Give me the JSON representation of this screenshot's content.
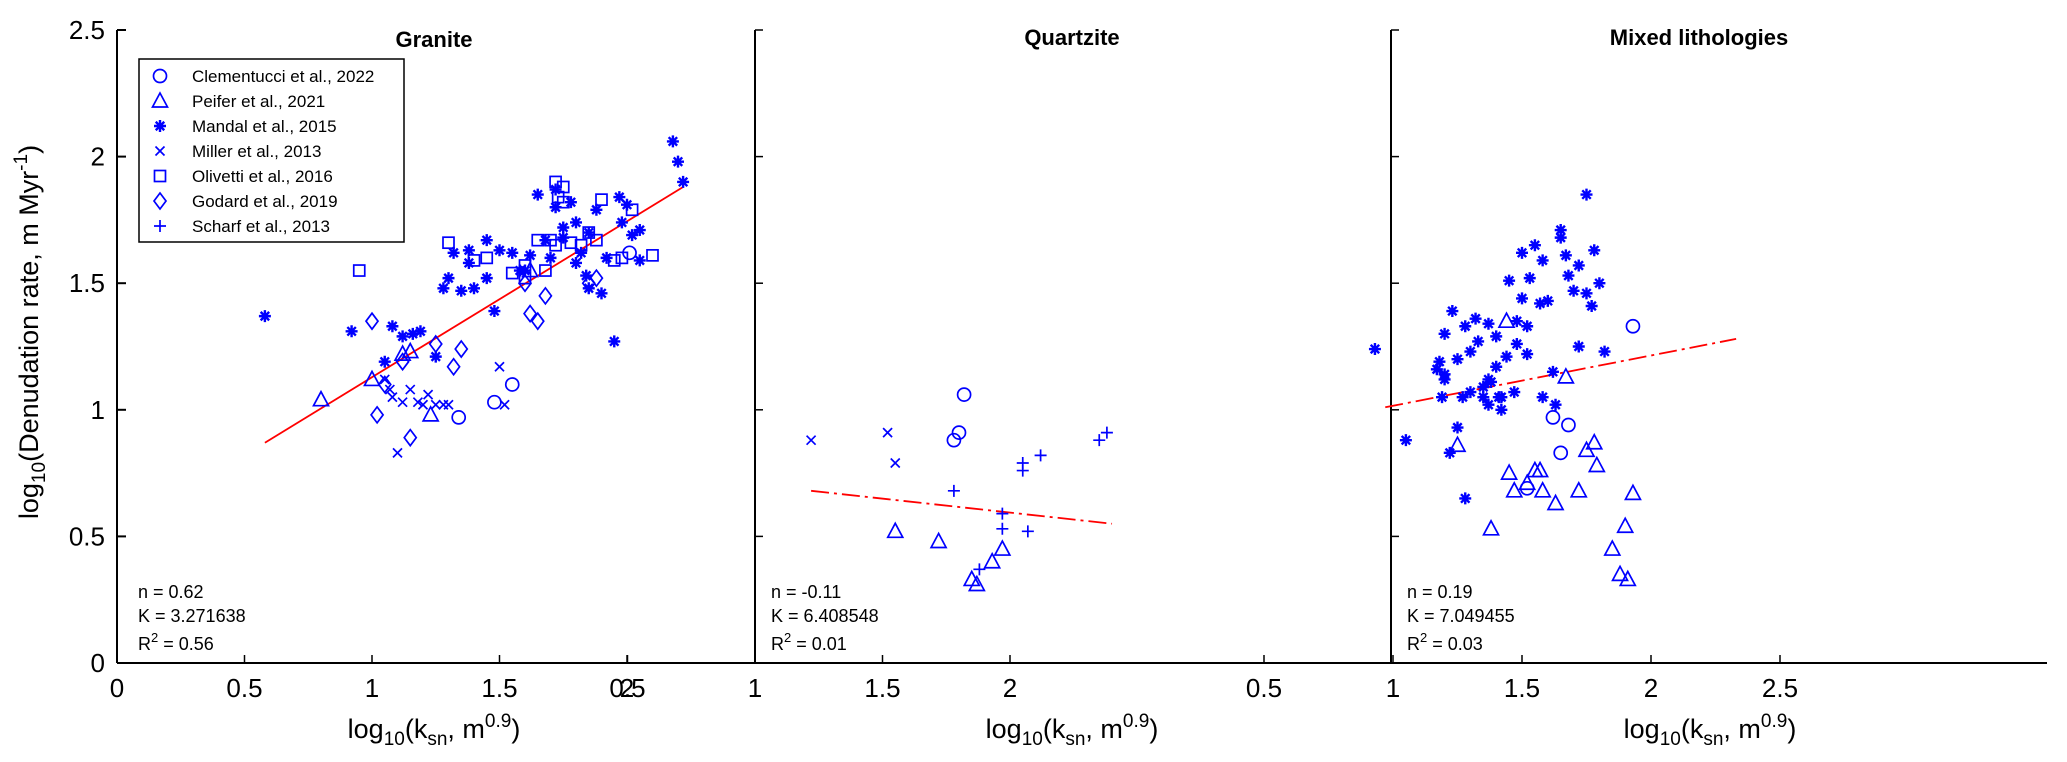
{
  "chart_data": {
    "type": "scatter",
    "ylabel": "log10(Denudation rate, m Myr-1)",
    "xlabel": "log10(ksn, m0.9)",
    "ylim": [
      0,
      2.5
    ],
    "y_ticks": [
      "0",
      "0.5",
      "1",
      "1.5",
      "2",
      "2.5"
    ],
    "legend_position": "top-left (Granite panel)",
    "legend": [
      {
        "name": "Clementucci et al., 2022",
        "marker": "circle"
      },
      {
        "name": "Peifer et al., 2021",
        "marker": "triangle"
      },
      {
        "name": "Mandal et al., 2015",
        "marker": "star"
      },
      {
        "name": "Miller et al., 2013",
        "marker": "x"
      },
      {
        "name": "Olivetti et al., 2016",
        "marker": "square"
      },
      {
        "name": "Godard et al., 2019",
        "marker": "diamond"
      },
      {
        "name": "Scharf et al., 2013",
        "marker": "plus"
      }
    ],
    "colors": {
      "markers": "#0000ff",
      "fit": "#ff0000",
      "axis": "#000000"
    },
    "panels": [
      {
        "title": "Granite",
        "xlim": [
          0,
          2.5
        ],
        "x_ticks": [
          "0",
          "0.5",
          "1",
          "1.5",
          "2"
        ],
        "stats": {
          "n": "n = 0.62",
          "K": "K = 3.271638",
          "r2_prefix": "R",
          "r2_sup": "2",
          "r2_value": " = 0.56"
        },
        "fit": {
          "x": [
            0.58,
            2.22
          ],
          "y": [
            0.87,
            1.88
          ],
          "style": "solid"
        },
        "series": [
          {
            "marker": "circle",
            "x": [
              1.34,
              1.48,
              1.55,
              2.01
            ],
            "y": [
              0.97,
              1.03,
              1.1,
              1.62
            ]
          },
          {
            "marker": "triangle",
            "x": [
              0.8,
              1.0,
              1.12,
              1.15,
              1.23,
              1.62
            ],
            "y": [
              1.04,
              1.12,
              1.22,
              1.23,
              0.98,
              1.55
            ]
          },
          {
            "marker": "star",
            "x": [
              0.58,
              0.92,
              1.05,
              1.08,
              1.12,
              1.16,
              1.19,
              1.25,
              1.28,
              1.3,
              1.32,
              1.35,
              1.38,
              1.4,
              1.45,
              1.48,
              1.5,
              1.55,
              1.58,
              1.6,
              1.62,
              1.65,
              1.68,
              1.7,
              1.72,
              1.72,
              1.75,
              1.75,
              1.78,
              1.8,
              1.82,
              1.84,
              1.85,
              1.88,
              1.9,
              1.92,
              1.95,
              1.97,
              1.98,
              2.0,
              2.02,
              2.05,
              2.05,
              2.18,
              2.2,
              2.22,
              1.38,
              1.45,
              1.85,
              1.8
            ],
            "y": [
              1.37,
              1.31,
              1.19,
              1.33,
              1.29,
              1.3,
              1.31,
              1.21,
              1.48,
              1.52,
              1.62,
              1.47,
              1.58,
              1.48,
              1.67,
              1.39,
              1.63,
              1.62,
              1.55,
              1.55,
              1.61,
              1.85,
              1.67,
              1.6,
              1.87,
              1.8,
              1.68,
              1.72,
              1.82,
              1.74,
              1.62,
              1.53,
              1.48,
              1.79,
              1.46,
              1.6,
              1.27,
              1.84,
              1.74,
              1.81,
              1.69,
              1.59,
              1.71,
              2.06,
              1.98,
              1.9,
              1.63,
              1.52,
              1.7,
              1.58
            ]
          },
          {
            "marker": "x",
            "x": [
              1.05,
              1.07,
              1.1,
              1.12,
              1.15,
              1.18,
              1.2,
              1.22,
              1.25,
              1.28,
              1.3,
              1.5,
              1.52,
              1.08
            ],
            "y": [
              1.12,
              1.08,
              0.83,
              1.03,
              1.08,
              1.03,
              1.02,
              1.06,
              1.02,
              1.02,
              1.02,
              1.17,
              1.02,
              1.05
            ]
          },
          {
            "marker": "square",
            "x": [
              0.95,
              1.3,
              1.4,
              1.45,
              1.55,
              1.6,
              1.65,
              1.68,
              1.7,
              1.72,
              1.73,
              1.75,
              1.75,
              1.78,
              1.82,
              1.85,
              1.88,
              1.9,
              1.95,
              1.98,
              2.02,
              2.1,
              1.72,
              1.6
            ],
            "y": [
              1.55,
              1.66,
              1.59,
              1.6,
              1.54,
              1.52,
              1.67,
              1.55,
              1.67,
              1.9,
              1.84,
              1.82,
              1.88,
              1.66,
              1.65,
              1.7,
              1.67,
              1.83,
              1.59,
              1.6,
              1.79,
              1.61,
              1.65,
              1.57
            ]
          },
          {
            "marker": "diamond",
            "x": [
              1.0,
              1.02,
              1.05,
              1.12,
              1.15,
              1.25,
              1.32,
              1.35,
              1.6,
              1.62,
              1.65,
              1.68,
              1.85,
              1.88
            ],
            "y": [
              1.35,
              0.98,
              1.1,
              1.19,
              0.89,
              1.26,
              1.17,
              1.24,
              1.5,
              1.38,
              1.35,
              1.45,
              1.5,
              1.52
            ]
          },
          {
            "marker": "plus",
            "x": [],
            "y": []
          }
        ]
      },
      {
        "title": "Quartzite",
        "xlim": [
          0,
          2.5
        ],
        "x_ticks": [
          "0.5",
          "1",
          "1.5",
          "2"
        ],
        "stats": {
          "n": "n = -0.11",
          "K": "K = 6.408548",
          "r2_prefix": "R",
          "r2_sup": "2",
          "r2_value": " = 0.01"
        },
        "fit": {
          "x": [
            1.22,
            2.4
          ],
          "y": [
            0.68,
            0.55
          ],
          "style": "dashdot"
        },
        "series": [
          {
            "marker": "circle",
            "x": [
              1.78,
              1.8,
              1.82
            ],
            "y": [
              0.88,
              0.91,
              1.06
            ]
          },
          {
            "marker": "triangle",
            "x": [
              1.55,
              1.72,
              1.85,
              1.87,
              1.93,
              1.97
            ],
            "y": [
              0.52,
              0.48,
              0.33,
              0.31,
              0.4,
              0.45
            ]
          },
          {
            "marker": "star",
            "x": [],
            "y": []
          },
          {
            "marker": "x",
            "x": [
              1.22,
              1.52,
              1.55
            ],
            "y": [
              0.88,
              0.91,
              0.79
            ]
          },
          {
            "marker": "square",
            "x": [],
            "y": []
          },
          {
            "marker": "diamond",
            "x": [],
            "y": []
          },
          {
            "marker": "plus",
            "x": [
              1.78,
              1.88,
              1.97,
              1.97,
              2.05,
              2.05,
              2.07,
              2.12,
              2.35,
              2.38
            ],
            "y": [
              0.68,
              0.37,
              0.53,
              0.59,
              0.79,
              0.76,
              0.52,
              0.82,
              0.88,
              0.91
            ]
          }
        ]
      },
      {
        "title": "Mixed lithologies",
        "xlim": [
          0,
          2.5
        ],
        "x_ticks": [
          "0.5",
          "1",
          "1.5",
          "2",
          "2.5"
        ],
        "stats": {
          "n": "n = 0.19",
          "K": "K = 7.049455",
          "r2_prefix": "R",
          "r2_sup": "2",
          "r2_value": " = 0.03"
        },
        "fit": {
          "x": [
            0.97,
            2.33
          ],
          "y": [
            1.01,
            1.28
          ],
          "style": "dashdot"
        },
        "series": [
          {
            "marker": "circle",
            "x": [
              1.52,
              1.62,
              1.65,
              1.68,
              1.93
            ],
            "y": [
              0.69,
              0.97,
              0.83,
              0.94,
              1.33
            ]
          },
          {
            "marker": "triangle",
            "x": [
              1.25,
              1.38,
              1.44,
              1.45,
              1.47,
              1.52,
              1.55,
              1.57,
              1.58,
              1.63,
              1.67,
              1.72,
              1.75,
              1.78,
              1.79,
              1.85,
              1.88,
              1.9,
              1.91,
              1.93
            ],
            "y": [
              0.86,
              0.53,
              1.35,
              0.75,
              0.68,
              0.71,
              0.76,
              0.76,
              0.68,
              0.63,
              1.13,
              0.68,
              0.84,
              0.87,
              0.78,
              0.45,
              0.35,
              0.54,
              0.33,
              0.67
            ]
          },
          {
            "marker": "star",
            "x": [
              0.93,
              1.05,
              1.17,
              1.18,
              1.19,
              1.2,
              1.2,
              1.22,
              1.23,
              1.25,
              1.25,
              1.27,
              1.28,
              1.3,
              1.3,
              1.32,
              1.33,
              1.35,
              1.35,
              1.37,
              1.37,
              1.38,
              1.4,
              1.4,
              1.42,
              1.42,
              1.44,
              1.45,
              1.47,
              1.48,
              1.5,
              1.5,
              1.52,
              1.52,
              1.53,
              1.55,
              1.57,
              1.58,
              1.58,
              1.6,
              1.62,
              1.63,
              1.65,
              1.65,
              1.67,
              1.68,
              1.7,
              1.72,
              1.72,
              1.75,
              1.75,
              1.77,
              1.78,
              1.8,
              1.82,
              1.28,
              1.37,
              1.41,
              1.48,
              1.2
            ],
            "y": [
              1.24,
              0.88,
              1.16,
              1.19,
              1.05,
              1.14,
              1.3,
              0.83,
              1.39,
              1.2,
              0.93,
              1.05,
              0.65,
              1.07,
              1.23,
              1.36,
              1.27,
              1.05,
              1.09,
              1.02,
              1.34,
              1.11,
              1.29,
              1.17,
              1.0,
              1.05,
              1.21,
              1.51,
              1.07,
              1.26,
              1.62,
              1.44,
              1.22,
              1.33,
              1.52,
              1.65,
              1.42,
              1.59,
              1.05,
              1.43,
              1.15,
              1.02,
              1.71,
              1.68,
              1.61,
              1.53,
              1.47,
              1.57,
              1.25,
              1.85,
              1.46,
              1.41,
              1.63,
              1.5,
              1.23,
              1.33,
              1.12,
              1.05,
              1.35,
              1.12
            ]
          },
          {
            "marker": "x",
            "x": [],
            "y": []
          },
          {
            "marker": "square",
            "x": [],
            "y": []
          },
          {
            "marker": "diamond",
            "x": [],
            "y": []
          },
          {
            "marker": "plus",
            "x": [],
            "y": []
          }
        ]
      }
    ]
  }
}
